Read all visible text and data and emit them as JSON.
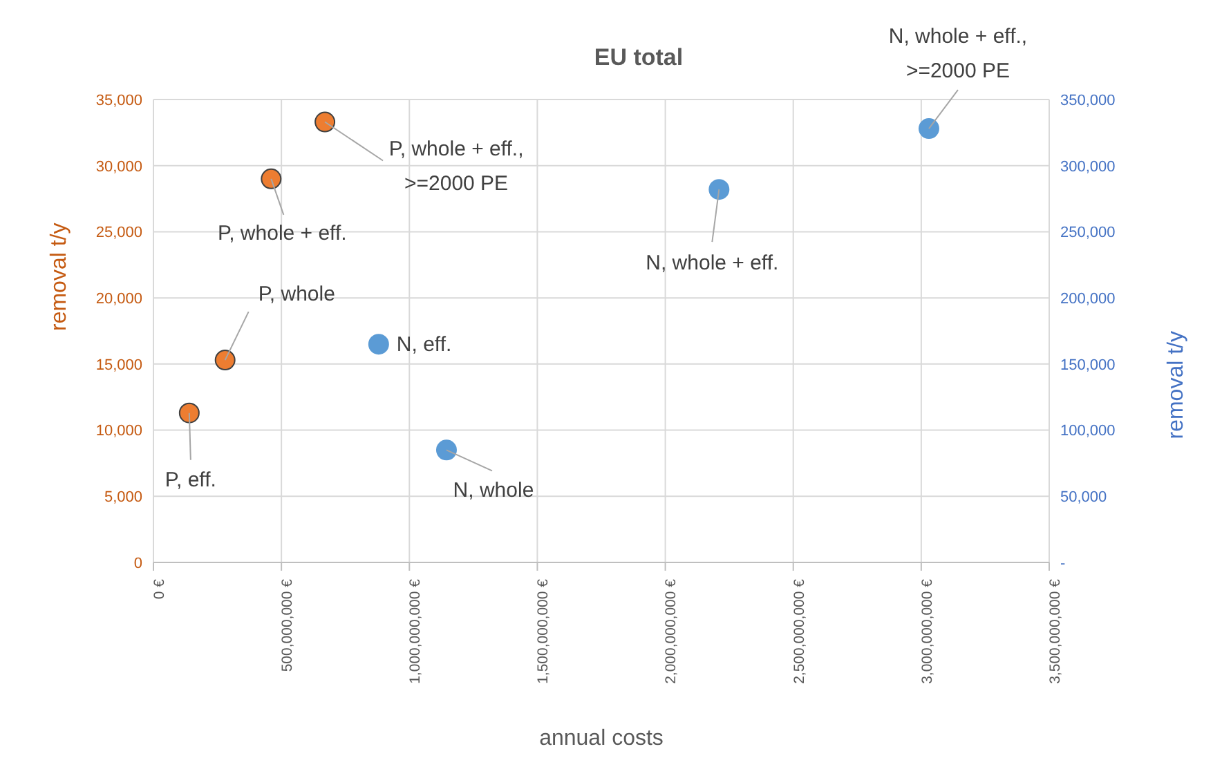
{
  "chart_data": {
    "type": "scatter",
    "title": "EU total",
    "xlabel": "annual costs",
    "ylabel": "removal t/y",
    "y2label": "removal t/y",
    "xlim": [
      0,
      3500000000
    ],
    "xticks": [
      {
        "value": 0,
        "label": "0 €"
      },
      {
        "value": 500000000,
        "label": "500,000,000 €"
      },
      {
        "value": 1000000000,
        "label": "1,000,000,000 €"
      },
      {
        "value": 1500000000,
        "label": "1,500,000,000 €"
      },
      {
        "value": 2000000000,
        "label": "2,000,000,000 €"
      },
      {
        "value": 2500000000,
        "label": "2,500,000,000 €"
      },
      {
        "value": 3000000000,
        "label": "3,000,000,000 €"
      },
      {
        "value": 3500000000,
        "label": "3,500,000,000 €"
      }
    ],
    "ylim": [
      0,
      35000
    ],
    "yticks": [
      {
        "value": 0,
        "label": "0"
      },
      {
        "value": 5000,
        "label": "5,000"
      },
      {
        "value": 10000,
        "label": "10,000"
      },
      {
        "value": 15000,
        "label": "15,000"
      },
      {
        "value": 20000,
        "label": "20,000"
      },
      {
        "value": 25000,
        "label": "25,000"
      },
      {
        "value": 30000,
        "label": "30,000"
      },
      {
        "value": 35000,
        "label": "35,000"
      }
    ],
    "y2lim": [
      0,
      350000
    ],
    "y2ticks": [
      {
        "value": 0,
        "label": "-"
      },
      {
        "value": 50000,
        "label": "50,000"
      },
      {
        "value": 100000,
        "label": "100,000"
      },
      {
        "value": 150000,
        "label": "150,000"
      },
      {
        "value": 200000,
        "label": "200,000"
      },
      {
        "value": 250000,
        "label": "250,000"
      },
      {
        "value": 300000,
        "label": "300,000"
      },
      {
        "value": 350000,
        "label": "350,000"
      }
    ],
    "grid": true,
    "marker": "circle",
    "series": [
      {
        "name": "P, eff.",
        "color": "#ed7d31",
        "x": [
          140000000
        ],
        "values": [
          11300
        ]
      },
      {
        "name": "P, whole",
        "color": "#ed7d31",
        "x": [
          280000000
        ],
        "values": [
          15300
        ]
      },
      {
        "name": "P, whole + eff.",
        "color": "#ed7d31",
        "x": [
          460000000
        ],
        "values": [
          29000
        ]
      },
      {
        "name": "P, whole + eff., >=2000 PE",
        "color": "#ed7d31",
        "x": [
          670000000
        ],
        "values": [
          33300
        ]
      },
      {
        "name": "N, eff.",
        "color": "#5b9bd5",
        "axis": "y2",
        "x": [
          880000000
        ],
        "values": [
          165000
        ]
      },
      {
        "name": "N, whole",
        "color": "#5b9bd5",
        "axis": "y2",
        "x": [
          1145000000
        ],
        "values": [
          85000
        ]
      },
      {
        "name": "N, whole + eff.",
        "color": "#5b9bd5",
        "axis": "y2",
        "x": [
          2210000000
        ],
        "values": [
          282000
        ]
      },
      {
        "name": "N, whole + eff., >=2000 PE",
        "color": "#5b9bd5",
        "axis": "y2",
        "x": [
          3030000000
        ],
        "values": [
          328000
        ]
      }
    ]
  }
}
